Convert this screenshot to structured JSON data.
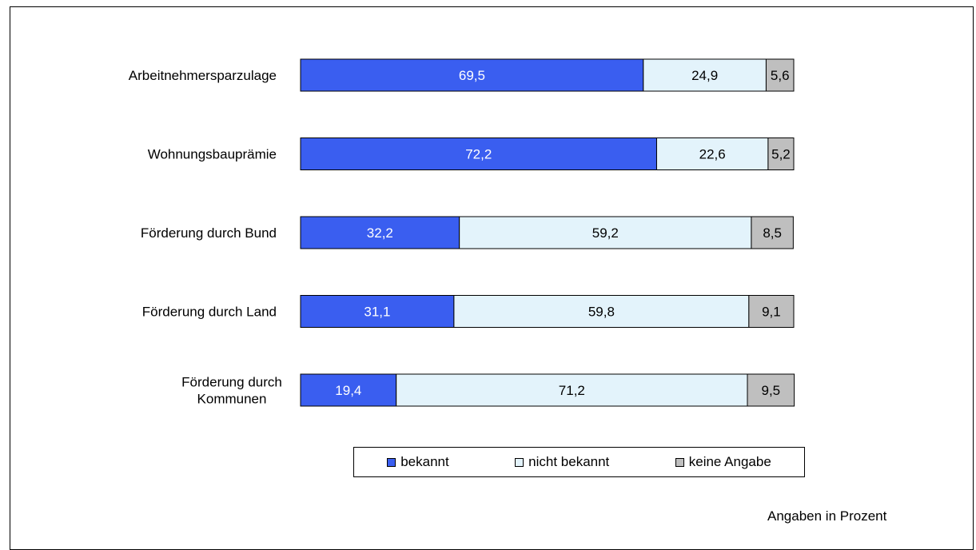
{
  "chart_data": {
    "type": "bar",
    "orientation": "horizontal",
    "stacked": true,
    "categories": [
      "Arbeitnehmersparzulage",
      "Wohnungsbauprämie",
      "Förderung durch Bund",
      "Förderung durch Land",
      "Förderung durch Kommunen"
    ],
    "category_lines": [
      [
        "Arbeitnehmersparzulage"
      ],
      [
        "Wohnungsbauprämie"
      ],
      [
        "Förderung durch Bund"
      ],
      [
        "Förderung durch Land"
      ],
      [
        "Förderung durch",
        "Kommunen"
      ]
    ],
    "series": [
      {
        "name": "bekannt",
        "values": [
          69.5,
          72.2,
          32.2,
          31.1,
          19.4
        ],
        "labels": [
          "69,5",
          "72,2",
          "32,2",
          "31,1",
          "19,4"
        ],
        "color": "#3a5ef0",
        "label_color": "#ffffff"
      },
      {
        "name": "nicht bekannt",
        "values": [
          24.9,
          22.6,
          59.2,
          59.8,
          71.2
        ],
        "labels": [
          "24,9",
          "22,6",
          "59,2",
          "59,8",
          "71,2"
        ],
        "color": "#e3f3fb",
        "label_color": "#000000"
      },
      {
        "name": "keine Angabe",
        "values": [
          5.6,
          5.2,
          8.5,
          9.1,
          9.5
        ],
        "labels": [
          "5,6",
          "5,2",
          "8,5",
          "9,1",
          "9,5"
        ],
        "color": "#bfbfbf",
        "label_color": "#000000"
      }
    ],
    "xlim": [
      0,
      100
    ],
    "grid": false,
    "legend_position": "bottom",
    "note": "Angaben in Prozent"
  }
}
